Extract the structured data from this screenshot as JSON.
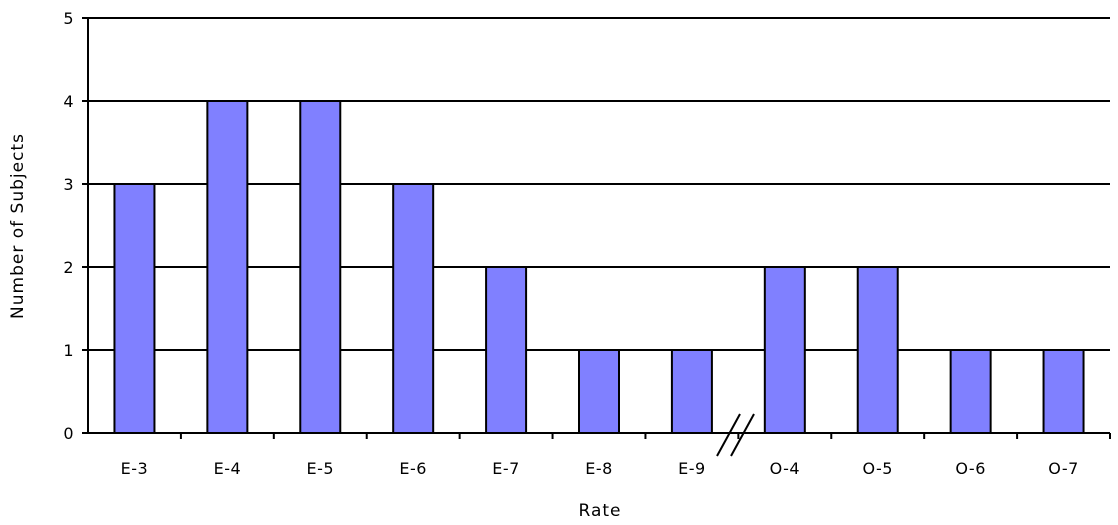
{
  "chart_data": {
    "type": "bar",
    "title": "",
    "xlabel": "Rate",
    "ylabel": "Number of Subjects",
    "categories": [
      "E-3",
      "E-4",
      "E-5",
      "E-6",
      "E-7",
      "E-8",
      "E-9",
      "O-4",
      "O-5",
      "O-6",
      "O-7"
    ],
    "values": [
      3,
      4,
      4,
      3,
      2,
      1,
      1,
      2,
      2,
      1,
      1
    ],
    "ylim": [
      0,
      5
    ],
    "yticks": [
      "0",
      "1",
      "2",
      "3",
      "4",
      "5"
    ],
    "grid": true,
    "axis_break": "between E-9 and O-4",
    "bar_color": "#8080ff",
    "bar_edge_color": "#000000"
  }
}
